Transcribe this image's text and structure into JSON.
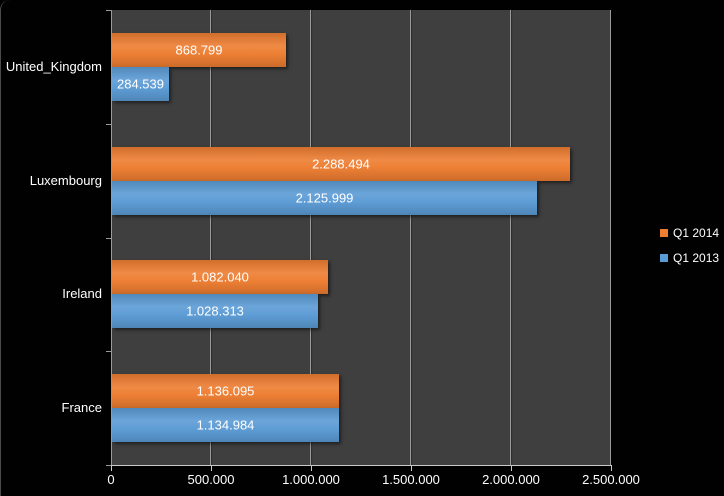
{
  "chart_data": {
    "type": "bar",
    "orientation": "horizontal",
    "title": "",
    "xlabel": "",
    "ylabel": "",
    "categories": [
      "United_Kingdom",
      "Luxembourg",
      "Ireland",
      "France"
    ],
    "series": [
      {
        "name": "Q1 2014",
        "color": "#ed7d31",
        "values": [
          868799,
          2288494,
          1082040,
          1136095
        ],
        "labels": [
          "868.799",
          "2.288.494",
          "1.082.040",
          "1.136.095"
        ]
      },
      {
        "name": "Q1 2013",
        "color": "#5b9bd5",
        "values": [
          284539,
          2125999,
          1028313,
          1134984
        ],
        "labels": [
          "284.539",
          "2.125.999",
          "1.028.313",
          "1.134.984"
        ]
      }
    ],
    "x_axis": {
      "min": 0,
      "max": 2500000,
      "tick_interval": 500000,
      "tick_labels": [
        "0",
        "500.000",
        "1.000.000",
        "1.500.000",
        "2.000.000",
        "2.500.000"
      ]
    },
    "legend": {
      "position": "right",
      "entries": [
        {
          "label": "Q1 2014",
          "color": "#ed7d31"
        },
        {
          "label": "Q1 2013",
          "color": "#5b9bd5"
        }
      ]
    },
    "grid": true,
    "colors": {
      "background": "#010101",
      "plot_background": "#3f3f3f",
      "gridline": "#9a9a9a",
      "category_axis_line": "#9a9a9a",
      "value_axis_line": "#c9c9c9",
      "text": "#ffffff"
    }
  }
}
